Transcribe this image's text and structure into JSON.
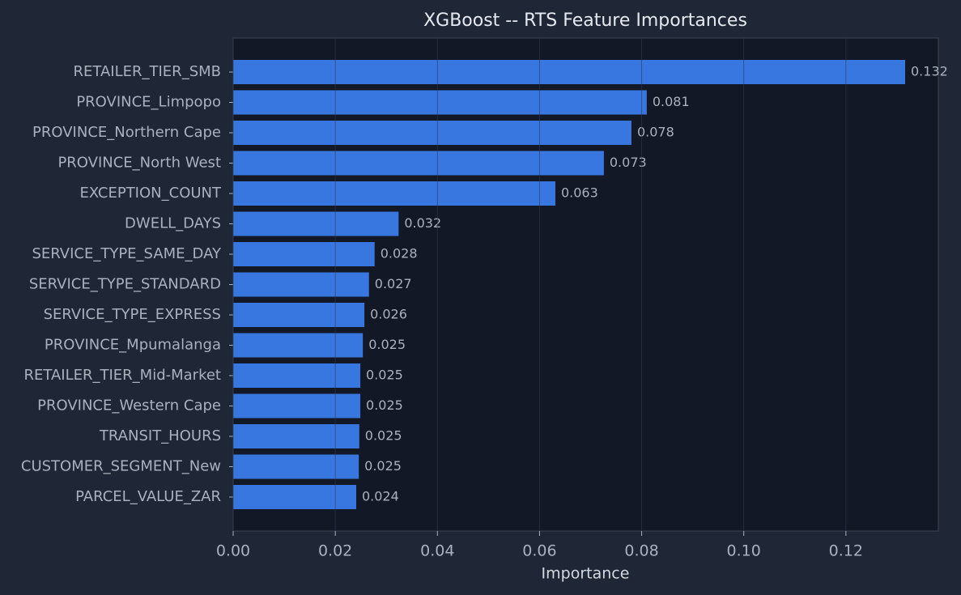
{
  "chart_data": {
    "type": "hbar",
    "title": "XGBoost -- RTS Feature Importances",
    "x_label": "Importance",
    "categories": [
      "RETAILER_TIER_SMB",
      "PROVINCE_Limpopo",
      "PROVINCE_Northern Cape",
      "PROVINCE_North West",
      "EXCEPTION_COUNT",
      "DWELL_DAYS",
      "SERVICE_TYPE_SAME_DAY",
      "SERVICE_TYPE_STANDARD",
      "SERVICE_TYPE_EXPRESS",
      "PROVINCE_Mpumalanga",
      "RETAILER_TIER_Mid-Market",
      "PROVINCE_Western Cape",
      "TRANSIT_HOURS",
      "CUSTOMER_SEGMENT_New",
      "PARCEL_VALUE_ZAR"
    ],
    "values": [
      0.1316,
      0.081,
      0.078,
      0.0726,
      0.0631,
      0.0324,
      0.0277,
      0.0266,
      0.0257,
      0.0254,
      0.0249,
      0.0249,
      0.0247,
      0.0246,
      0.0241
    ],
    "value_labels": [
      "0.132",
      "0.081",
      "0.078",
      "0.073",
      "0.063",
      "0.032",
      "0.028",
      "0.027",
      "0.026",
      "0.025",
      "0.025",
      "0.025",
      "0.025",
      "0.025",
      "0.024"
    ],
    "color": "#3877e0",
    "xlim": [
      0,
      0.1381
    ],
    "xticks": [
      {
        "value": 0,
        "label": "0.00"
      },
      {
        "value": 0.02,
        "label": "0.02"
      },
      {
        "value": 0.04,
        "label": "0.04"
      },
      {
        "value": 0.06,
        "label": "0.06"
      },
      {
        "value": 0.08,
        "label": "0.08"
      },
      {
        "value": 0.1,
        "label": "0.10"
      },
      {
        "value": 0.12,
        "label": "0.12"
      }
    ],
    "grid": true
  }
}
